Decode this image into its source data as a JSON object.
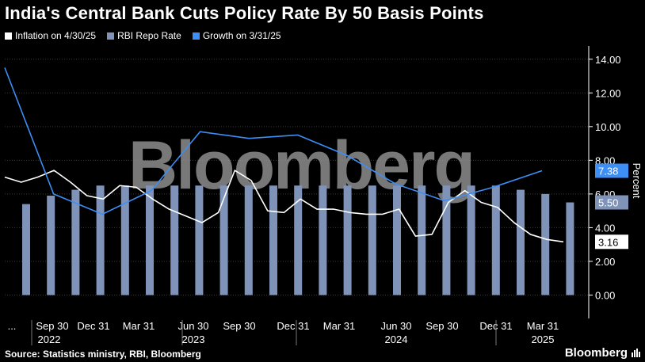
{
  "chart_data": {
    "type": "line",
    "title": "India's Central Bank Cuts Policy Rate By 50 Basis Points",
    "ylabel": "Percent",
    "ylim": [
      -1.2,
      14.6
    ],
    "y_ticks": [
      "14.00",
      "12.00",
      "10.00",
      "8.00",
      "6.00",
      "4.00",
      "2.00",
      "0.00"
    ],
    "x_ticks": [
      "...",
      "Sep 30",
      "Dec 31",
      "Mar 31",
      "Jun 30",
      "Sep 30",
      "Dec 31",
      "Mar 31",
      "Jun 30",
      "Sep 30",
      "Dec 31",
      "Mar 31"
    ],
    "year_labels": [
      "2022",
      "2023",
      "2024",
      "2025"
    ],
    "watermark": "Bloomberg",
    "series": [
      {
        "name": "Inflation on 4/30/25",
        "color": "#ffffff",
        "end_label": "3.16",
        "values": [
          7.0,
          6.7,
          7.0,
          7.4,
          6.7,
          5.9,
          5.7,
          6.5,
          6.4,
          5.7,
          5.1,
          4.7,
          4.3,
          4.9,
          7.4,
          6.8,
          5.0,
          4.9,
          5.7,
          5.1,
          5.1,
          4.9,
          4.8,
          4.8,
          5.1,
          3.5,
          3.6,
          5.5,
          6.2,
          5.5,
          5.2,
          4.3,
          3.6,
          3.3,
          3.16
        ]
      },
      {
        "name": "RBI Repo Rate",
        "color": "#7f93b8",
        "end_label": "5.50",
        "values": [
          5.4,
          5.9,
          6.25,
          6.5,
          6.5,
          6.5,
          6.5,
          6.5,
          6.5,
          6.5,
          6.5,
          6.5,
          6.5,
          6.5,
          6.5,
          6.5,
          6.5,
          6.5,
          6.5,
          6.5,
          6.25,
          6.0,
          5.5
        ]
      },
      {
        "name": "Growth on 3/31/25",
        "color": "#3d8ef5",
        "end_label": "7.38",
        "values": [
          13.5,
          6.0,
          4.8,
          6.2,
          9.7,
          9.3,
          9.5,
          8.3,
          6.6,
          5.6,
          6.4,
          7.38
        ]
      }
    ]
  },
  "footer": {
    "source": "Source: Statistics ministry, RBI, Bloomberg",
    "brand": "Bloomberg"
  }
}
